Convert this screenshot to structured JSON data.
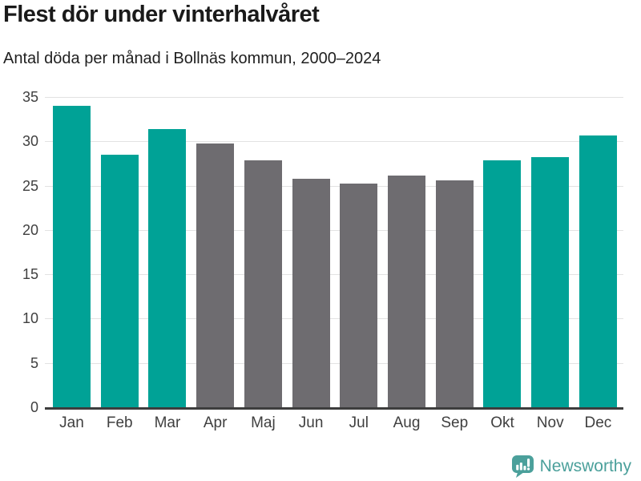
{
  "header": {
    "title": "Flest dör under vinterhalvåret",
    "subtitle": "Antal döda per månad i Bollnäs kommun, 2000–2024"
  },
  "chart_data": {
    "type": "bar",
    "title": "Flest dör under vinterhalvåret",
    "subtitle": "Antal döda per månad i Bollnäs kommun, 2000–2024",
    "categories": [
      "Jan",
      "Feb",
      "Mar",
      "Apr",
      "Maj",
      "Jun",
      "Jul",
      "Aug",
      "Sep",
      "Okt",
      "Nov",
      "Dec"
    ],
    "values": [
      34.0,
      28.5,
      31.4,
      29.8,
      27.9,
      25.8,
      25.2,
      26.1,
      25.6,
      27.9,
      28.2,
      30.7
    ],
    "highlighted": [
      true,
      true,
      true,
      false,
      false,
      false,
      false,
      false,
      false,
      true,
      true,
      true
    ],
    "xlabel": "",
    "ylabel": "",
    "ylim": [
      0,
      35
    ],
    "yticks": [
      0,
      5,
      10,
      15,
      20,
      25,
      30,
      35
    ],
    "grid": true,
    "legend": "none",
    "colors": {
      "highlight": "#00A296",
      "muted": "#6E6C70",
      "gridline": "#E2E2E2",
      "axis_line": "#3D3D3D",
      "tick_text": "#3F3F3F"
    }
  },
  "footer": {
    "brand": "Newsworthy",
    "logo_icon": "newsworthy-speech-bubble-bar-chart-icon",
    "brand_color": "#4BA09B"
  }
}
